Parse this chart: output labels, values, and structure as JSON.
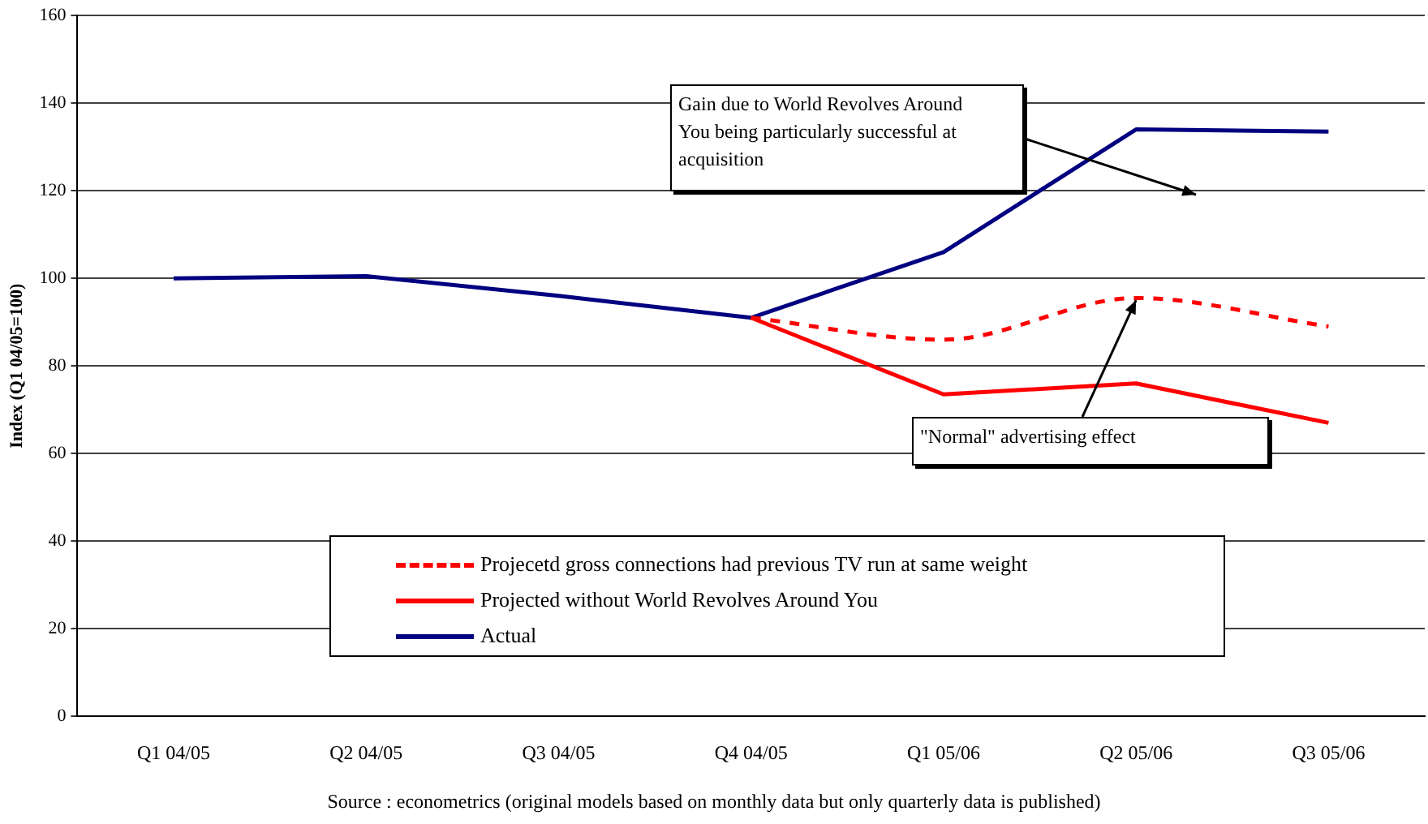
{
  "chart_data": {
    "type": "line",
    "ylabel": "Index (Q1 04/05=100)",
    "categories": [
      "Q1 04/05",
      "Q2 04/05",
      "Q3 04/05",
      "Q4 04/05",
      "Q1 05/06",
      "Q2 05/06",
      "Q3 05/06"
    ],
    "series": [
      {
        "name": "Projecetd gross connections had previous TV run at same weight",
        "color": "#ff0000",
        "line_style": "dashed",
        "values": [
          null,
          null,
          null,
          91,
          86,
          95.5,
          89
        ]
      },
      {
        "name": "Projected without World Revolves Around You",
        "color": "#ff0000",
        "line_style": "solid",
        "values": [
          null,
          null,
          null,
          91,
          73.5,
          76,
          67
        ]
      },
      {
        "name": "Actual",
        "color": "#000080",
        "line_style": "solid",
        "values": [
          100,
          100.5,
          96,
          91,
          106,
          134,
          133.5
        ]
      }
    ],
    "ylim": [
      0,
      160
    ],
    "yticks": [
      0,
      20,
      40,
      60,
      80,
      100,
      120,
      140,
      160
    ],
    "grid": "y",
    "legend": "bottom",
    "marker": "none",
    "annotations": [
      "Gain due to World Revolves Around You being particularly successful at acquisition",
      {
        "text": "\"Normal\" advertising effect",
        "x": "Q2 05/06",
        "y": 95
      },
      "Source : econometrics (original models based on monthly data but only quarterly data is published)"
    ]
  }
}
